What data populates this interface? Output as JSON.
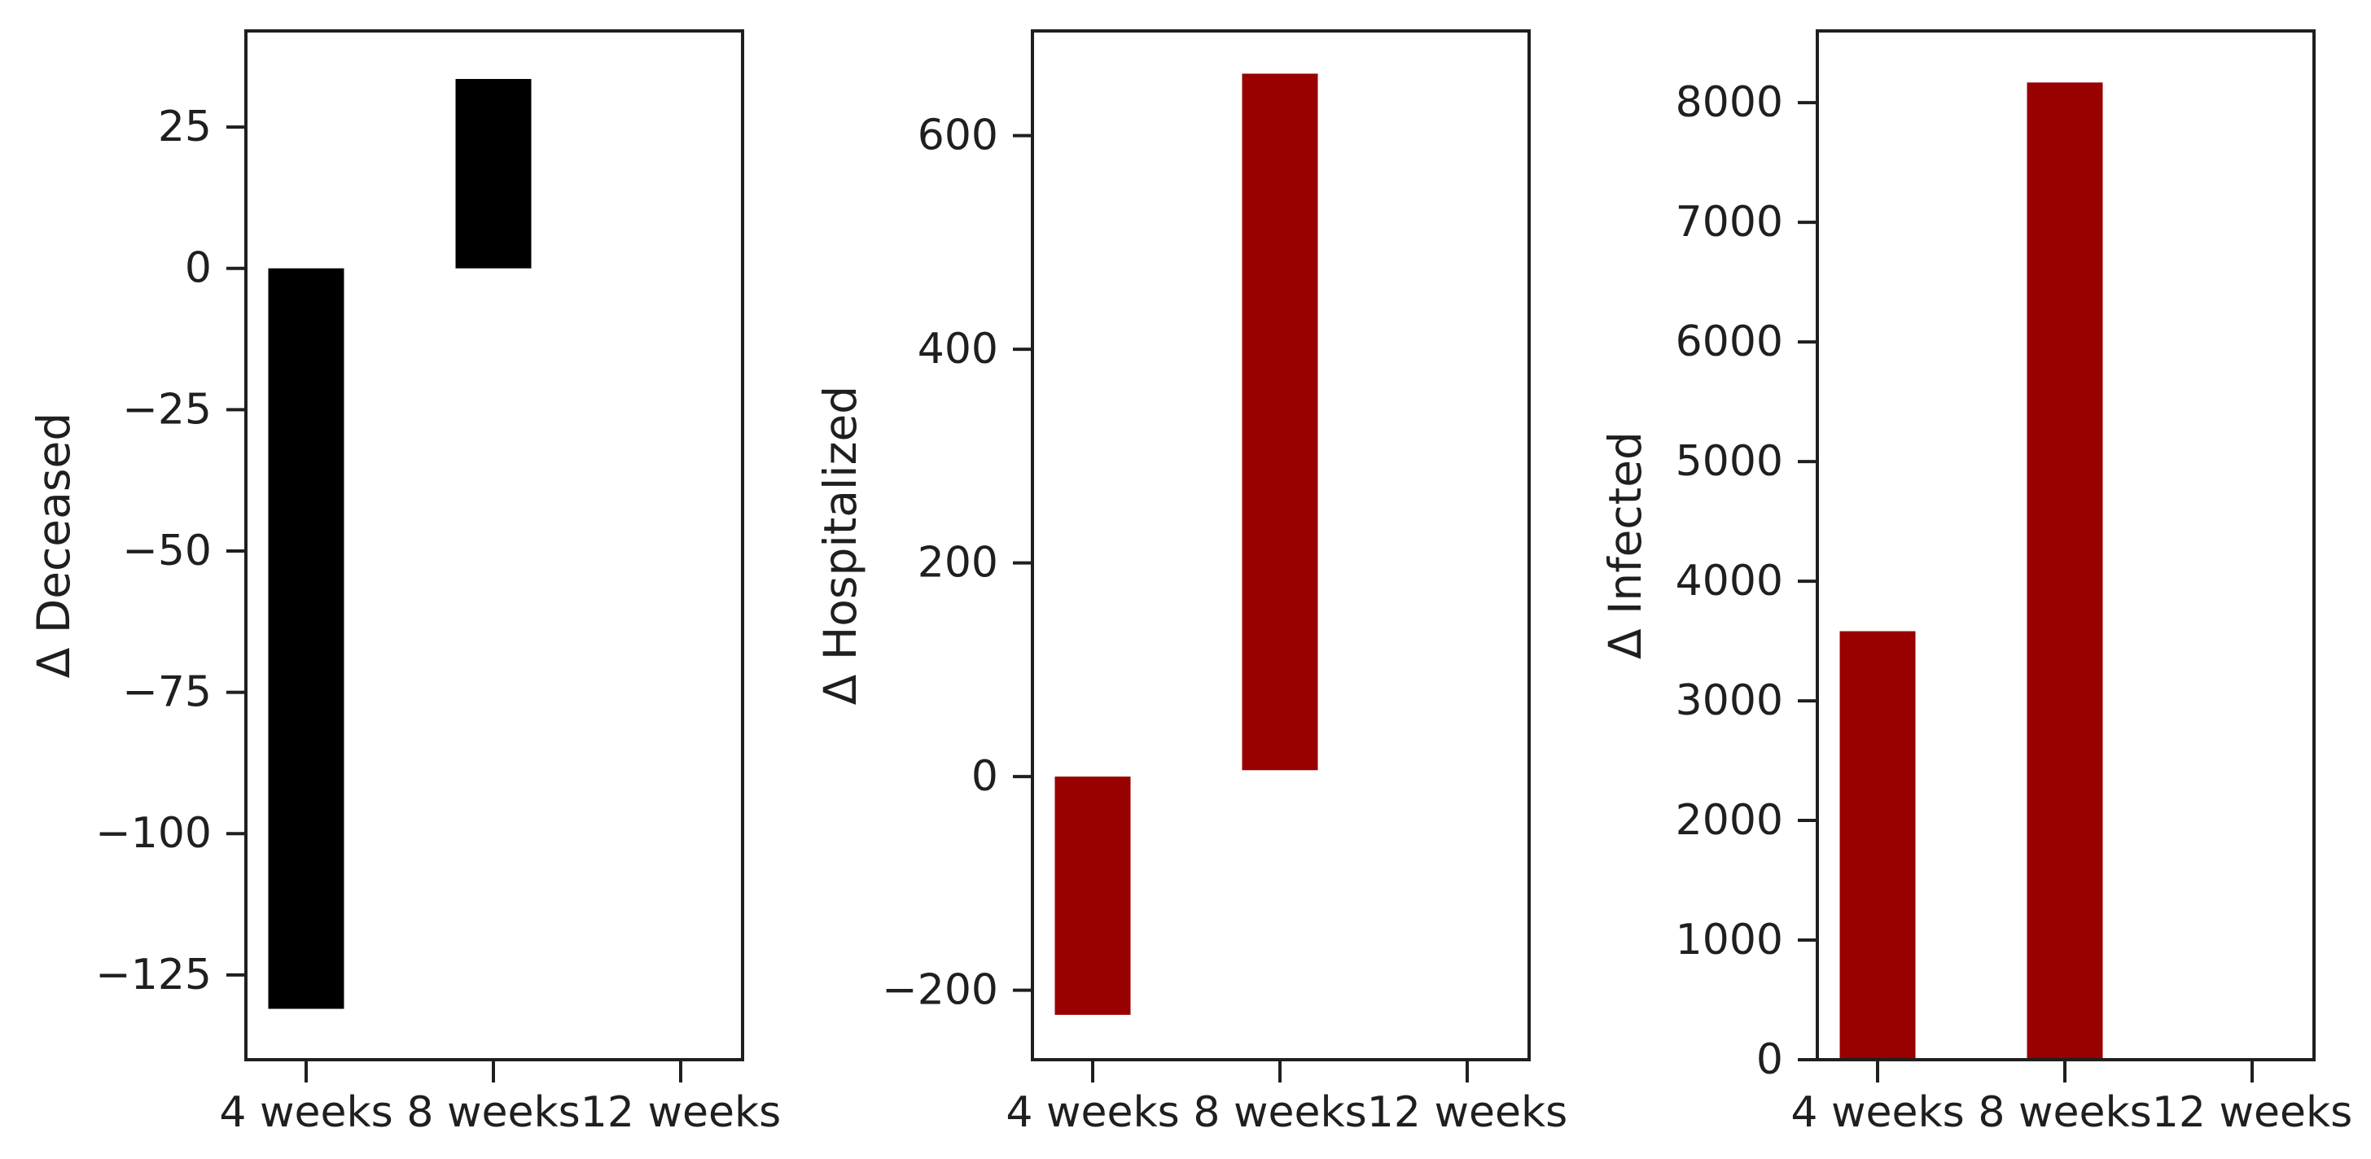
{
  "figure": {
    "background": "#ffffff",
    "axis_color": "#1f1f1f",
    "text_color": "#1f1f1f"
  },
  "chart_data": [
    {
      "type": "bar",
      "title": "",
      "xlabel": "",
      "ylabel": "Δ Deceased",
      "categories": [
        "4 weeks",
        "8 weeks",
        "12 weeks"
      ],
      "values": [
        -131,
        33.5,
        0
      ],
      "bar_starts": [
        0,
        0,
        0
      ],
      "bar_color": "#000000",
      "yticks": [
        25,
        0,
        -25,
        -50,
        -75,
        -100,
        -125
      ],
      "ylim": [
        -140,
        42
      ],
      "grid": false,
      "legend_position": "none"
    },
    {
      "type": "bar",
      "title": "",
      "xlabel": "",
      "ylabel": "Δ Hospitalized",
      "categories": [
        "4 weeks",
        "8 weeks",
        "12 weeks"
      ],
      "values": [
        -223,
        658,
        0
      ],
      "bar_starts": [
        0,
        6,
        0
      ],
      "bar_color": "#990000",
      "yticks": [
        600,
        400,
        200,
        0,
        -200
      ],
      "ylim": [
        -265,
        698
      ],
      "grid": false,
      "legend_position": "none"
    },
    {
      "type": "bar",
      "title": "",
      "xlabel": "",
      "ylabel": "Δ Infected",
      "categories": [
        "4 weeks",
        "8 weeks",
        "12 weeks"
      ],
      "values": [
        3582,
        8169,
        0
      ],
      "bar_starts": [
        0,
        0,
        0
      ],
      "bar_color": "#990000",
      "yticks": [
        0,
        1000,
        2000,
        3000,
        4000,
        5000,
        6000,
        7000,
        8000
      ],
      "ylim": [
        0,
        8600
      ],
      "grid": false,
      "legend_position": "none"
    }
  ]
}
